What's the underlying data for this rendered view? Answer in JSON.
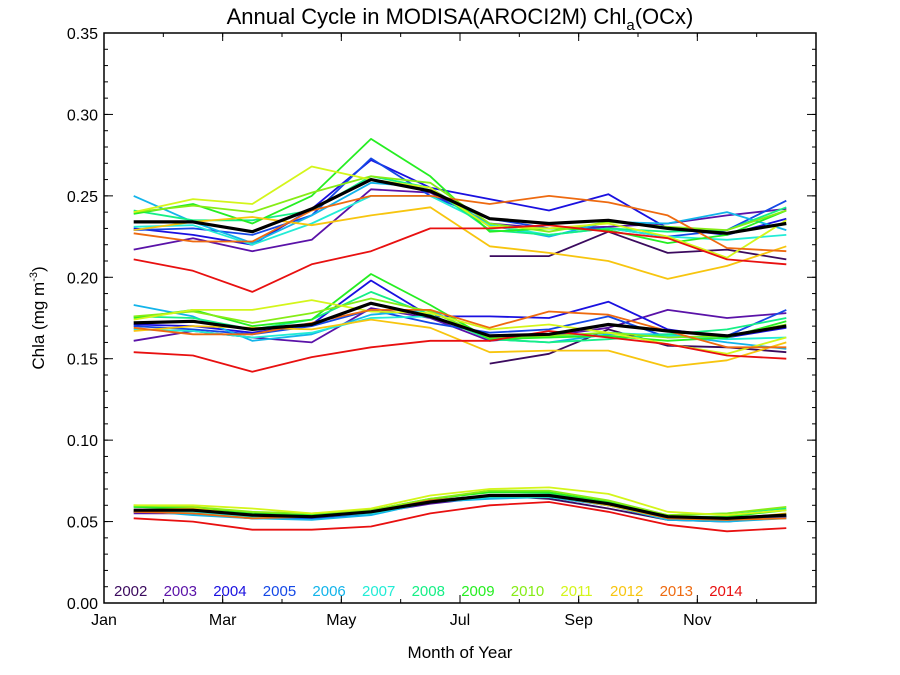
{
  "chart_data": {
    "type": "line",
    "title": {
      "main": "Annual Cycle in MODISA(AROCI2M) Chl",
      "subscript": "a",
      "tail": "(OCx)"
    },
    "xlabel": "Month of Year",
    "ylabel": {
      "main": "Chla (mg m",
      "superscript": "-3",
      "tail": ")"
    },
    "xlim": [
      1,
      13
    ],
    "ylim": [
      0,
      0.35
    ],
    "x_ticks": [
      {
        "value": 1,
        "label": "Jan"
      },
      {
        "value": 3,
        "label": "Mar"
      },
      {
        "value": 5,
        "label": "May"
      },
      {
        "value": 7,
        "label": "Jul"
      },
      {
        "value": 9,
        "label": "Sep"
      },
      {
        "value": 11,
        "label": "Nov"
      }
    ],
    "y_ticks": [
      {
        "value": 0,
        "label": "0.00"
      },
      {
        "value": 0.05,
        "label": "0.05"
      },
      {
        "value": 0.1,
        "label": "0.10"
      },
      {
        "value": 0.15,
        "label": "0.15"
      },
      {
        "value": 0.2,
        "label": "0.20"
      },
      {
        "value": 0.25,
        "label": "0.25"
      },
      {
        "value": 0.3,
        "label": "0.30"
      },
      {
        "value": 0.35,
        "label": "0.35"
      }
    ],
    "months": [
      1.5,
      2.5,
      3.5,
      4.5,
      5.5,
      6.5,
      7.5,
      8.5,
      9.5,
      10.5,
      11.5,
      12.5
    ],
    "series": [
      {
        "name": "2002",
        "color": "#3b0a5e",
        "upper": [
          null,
          null,
          null,
          null,
          null,
          null,
          0.213,
          0.213,
          0.228,
          0.215,
          0.217,
          0.211
        ],
        "middle": [
          null,
          null,
          null,
          null,
          null,
          null,
          0.147,
          0.153,
          0.168,
          0.158,
          0.157,
          0.154
        ],
        "lower": [
          null,
          null,
          null,
          null,
          null,
          null,
          0.066,
          0.064,
          0.058,
          0.051,
          0.05,
          0.053
        ]
      },
      {
        "name": "2003",
        "color": "#5a12a8",
        "upper": [
          0.217,
          0.224,
          0.216,
          0.223,
          0.254,
          0.252,
          0.233,
          0.23,
          0.231,
          0.233,
          0.238,
          0.242
        ],
        "middle": [
          0.161,
          0.167,
          0.163,
          0.16,
          0.181,
          0.175,
          0.161,
          0.164,
          0.169,
          0.18,
          0.175,
          0.178
        ],
        "lower": [
          0.055,
          0.055,
          0.052,
          0.052,
          0.055,
          0.061,
          0.065,
          0.066,
          0.06,
          0.052,
          0.051,
          0.054
        ]
      },
      {
        "name": "2004",
        "color": "#1a10e0",
        "upper": [
          0.23,
          0.226,
          0.22,
          0.242,
          0.272,
          0.255,
          0.248,
          0.241,
          0.251,
          0.23,
          0.226,
          0.236
        ],
        "middle": [
          0.171,
          0.17,
          0.166,
          0.171,
          0.198,
          0.176,
          0.176,
          0.175,
          0.185,
          0.168,
          0.163,
          0.169
        ],
        "lower": [
          0.056,
          0.056,
          0.053,
          0.053,
          0.056,
          0.063,
          0.066,
          0.066,
          0.061,
          0.052,
          0.052,
          0.053
        ]
      },
      {
        "name": "2005",
        "color": "#1448e6",
        "upper": [
          0.229,
          0.23,
          0.226,
          0.238,
          0.273,
          0.25,
          0.236,
          0.23,
          0.23,
          0.225,
          0.229,
          0.247
        ],
        "middle": [
          0.17,
          0.168,
          0.165,
          0.17,
          0.18,
          0.172,
          0.166,
          0.168,
          0.176,
          0.163,
          0.164,
          0.18
        ],
        "lower": [
          0.056,
          0.055,
          0.052,
          0.052,
          0.055,
          0.062,
          0.065,
          0.065,
          0.06,
          0.052,
          0.051,
          0.053
        ]
      },
      {
        "name": "2006",
        "color": "#13b4ea",
        "upper": [
          0.25,
          0.234,
          0.221,
          0.238,
          0.258,
          0.255,
          0.232,
          0.225,
          0.234,
          0.233,
          0.24,
          0.229
        ],
        "middle": [
          0.183,
          0.176,
          0.161,
          0.165,
          0.177,
          0.18,
          0.162,
          0.16,
          0.165,
          0.165,
          0.16,
          0.156
        ],
        "lower": [
          0.057,
          0.054,
          0.052,
          0.051,
          0.054,
          0.062,
          0.064,
          0.065,
          0.06,
          0.051,
          0.05,
          0.052
        ]
      },
      {
        "name": "2007",
        "color": "#22ecd6",
        "upper": [
          0.231,
          0.232,
          0.22,
          0.233,
          0.25,
          0.25,
          0.232,
          0.226,
          0.23,
          0.225,
          0.223,
          0.226
        ],
        "middle": [
          0.168,
          0.167,
          0.163,
          0.166,
          0.175,
          0.176,
          0.163,
          0.163,
          0.166,
          0.164,
          0.162,
          0.163
        ],
        "lower": [
          0.056,
          0.056,
          0.053,
          0.053,
          0.055,
          0.062,
          0.065,
          0.065,
          0.061,
          0.053,
          0.052,
          0.054
        ]
      },
      {
        "name": "2008",
        "color": "#16ef86",
        "upper": [
          0.241,
          0.235,
          0.235,
          0.241,
          0.262,
          0.255,
          0.229,
          0.226,
          0.23,
          0.228,
          0.229,
          0.243
        ],
        "middle": [
          0.176,
          0.175,
          0.168,
          0.174,
          0.191,
          0.177,
          0.162,
          0.16,
          0.162,
          0.165,
          0.168,
          0.175
        ],
        "lower": [
          0.059,
          0.058,
          0.054,
          0.054,
          0.057,
          0.063,
          0.066,
          0.067,
          0.062,
          0.054,
          0.055,
          0.058
        ]
      },
      {
        "name": "2009",
        "color": "#26ee22",
        "upper": [
          0.239,
          0.245,
          0.233,
          0.25,
          0.285,
          0.262,
          0.228,
          0.23,
          0.229,
          0.221,
          0.226,
          0.241
        ],
        "middle": [
          0.175,
          0.18,
          0.17,
          0.174,
          0.202,
          0.183,
          0.162,
          0.163,
          0.164,
          0.161,
          0.163,
          0.173
        ],
        "lower": [
          0.059,
          0.058,
          0.055,
          0.054,
          0.057,
          0.064,
          0.068,
          0.068,
          0.062,
          0.053,
          0.053,
          0.057
        ]
      },
      {
        "name": "2010",
        "color": "#86ec16",
        "upper": [
          0.24,
          0.244,
          0.24,
          0.252,
          0.262,
          0.258,
          0.233,
          0.228,
          0.234,
          0.231,
          0.229,
          0.241
        ],
        "middle": [
          0.176,
          0.179,
          0.172,
          0.178,
          0.187,
          0.179,
          0.163,
          0.164,
          0.166,
          0.163,
          0.164,
          0.171
        ],
        "lower": [
          0.06,
          0.059,
          0.056,
          0.055,
          0.057,
          0.064,
          0.069,
          0.069,
          0.063,
          0.054,
          0.055,
          0.059
        ]
      },
      {
        "name": "2011",
        "color": "#d4f51a",
        "upper": [
          0.24,
          0.248,
          0.245,
          0.268,
          0.26,
          0.255,
          0.231,
          0.23,
          0.233,
          0.225,
          0.212,
          0.235
        ],
        "middle": [
          0.174,
          0.18,
          0.18,
          0.186,
          0.179,
          0.178,
          0.168,
          0.171,
          0.166,
          0.159,
          0.153,
          0.163
        ],
        "lower": [
          0.06,
          0.06,
          0.058,
          0.055,
          0.058,
          0.066,
          0.07,
          0.071,
          0.067,
          0.056,
          0.054,
          0.057
        ]
      },
      {
        "name": "2012",
        "color": "#f7c50f",
        "upper": [
          0.229,
          0.234,
          0.237,
          0.232,
          0.238,
          0.243,
          0.219,
          0.215,
          0.21,
          0.199,
          0.207,
          0.219
        ],
        "middle": [
          0.167,
          0.17,
          0.169,
          0.168,
          0.174,
          0.169,
          0.154,
          0.155,
          0.155,
          0.145,
          0.149,
          0.16
        ],
        "lower": [
          0.057,
          0.058,
          0.054,
          0.053,
          0.056,
          0.062,
          0.066,
          0.066,
          0.06,
          0.052,
          0.051,
          0.055
        ]
      },
      {
        "name": "2013",
        "color": "#ee6a10",
        "upper": [
          0.227,
          0.222,
          0.222,
          0.241,
          0.25,
          0.25,
          0.245,
          0.25,
          0.246,
          0.238,
          0.218,
          0.216
        ],
        "middle": [
          0.169,
          0.165,
          0.165,
          0.172,
          0.18,
          0.18,
          0.169,
          0.179,
          0.177,
          0.167,
          0.157,
          0.157
        ],
        "lower": [
          0.056,
          0.055,
          0.052,
          0.053,
          0.056,
          0.063,
          0.066,
          0.066,
          0.061,
          0.052,
          0.051,
          0.052
        ]
      },
      {
        "name": "2014",
        "color": "#e81010",
        "upper": [
          0.211,
          0.204,
          0.191,
          0.208,
          0.216,
          0.23,
          0.23,
          0.232,
          0.228,
          0.224,
          0.211,
          0.208
        ],
        "middle": [
          0.154,
          0.152,
          0.142,
          0.151,
          0.157,
          0.161,
          0.161,
          0.167,
          0.163,
          0.159,
          0.152,
          0.15
        ],
        "lower": [
          0.052,
          0.05,
          0.045,
          0.045,
          0.047,
          0.055,
          0.06,
          0.062,
          0.056,
          0.048,
          0.044,
          0.046
        ]
      }
    ],
    "climatology": {
      "color": "#000000",
      "upper": [
        0.234,
        0.234,
        0.228,
        0.242,
        0.26,
        0.253,
        0.236,
        0.233,
        0.235,
        0.23,
        0.227,
        0.233
      ],
      "middle": [
        0.172,
        0.173,
        0.168,
        0.171,
        0.184,
        0.176,
        0.164,
        0.165,
        0.171,
        0.167,
        0.164,
        0.17
      ],
      "lower": [
        0.057,
        0.057,
        0.054,
        0.053,
        0.056,
        0.062,
        0.066,
        0.066,
        0.061,
        0.053,
        0.052,
        0.054
      ]
    },
    "grid": false,
    "legend_position": "bottom-left inside plot"
  }
}
